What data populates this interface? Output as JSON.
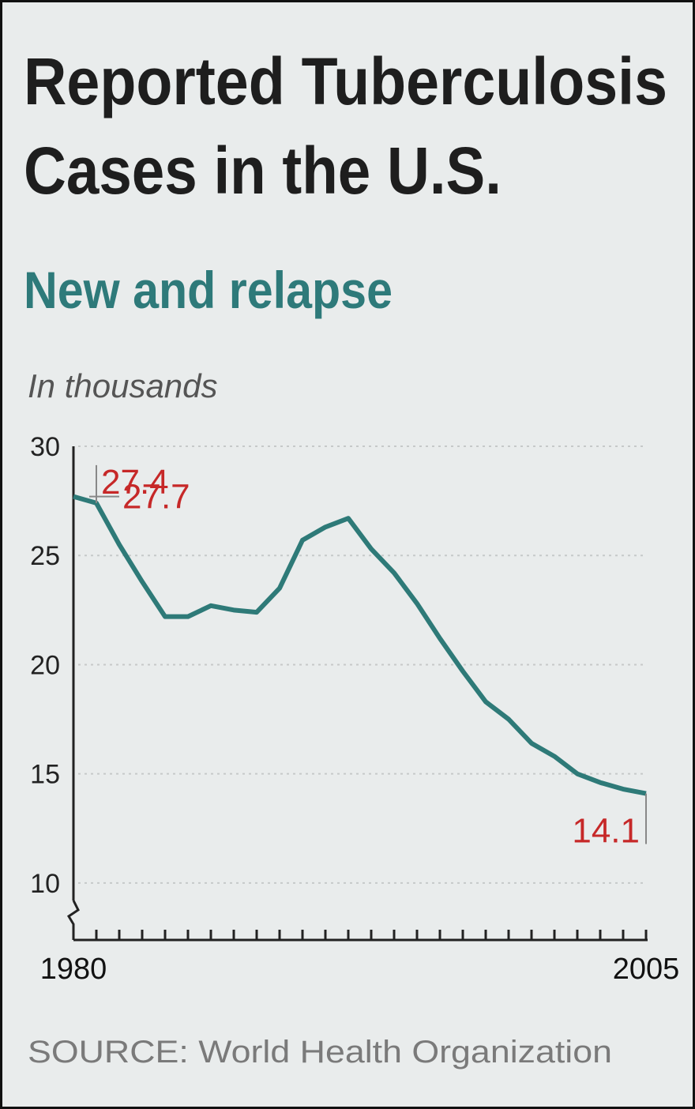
{
  "chart_data": {
    "type": "line",
    "title": "Reported Tuberculosis",
    "title_line2": "Cases in the U.S.",
    "subtitle": "New and relapse",
    "y_label": "In thousands",
    "source": "SOURCE: World Health Organization",
    "x": [
      1980,
      1981,
      1982,
      1983,
      1984,
      1985,
      1986,
      1987,
      1988,
      1989,
      1990,
      1991,
      1992,
      1993,
      1994,
      1995,
      1996,
      1997,
      1998,
      1999,
      2000,
      2001,
      2002,
      2003,
      2004,
      2005
    ],
    "values": [
      27.7,
      27.4,
      25.5,
      23.8,
      22.2,
      22.2,
      22.7,
      22.5,
      22.4,
      23.5,
      25.7,
      26.3,
      26.7,
      25.3,
      24.2,
      22.8,
      21.2,
      19.7,
      18.3,
      17.5,
      16.4,
      15.8,
      15.0,
      14.6,
      14.3,
      14.1
    ],
    "color": "#2e7a78",
    "label_color": "#c62828",
    "xlim": [
      1980,
      2005
    ],
    "xticks": [
      1980,
      2005
    ],
    "ylim": [
      7.5,
      30
    ],
    "yticks": [
      10,
      15,
      20,
      25,
      30
    ],
    "grid": true
  }
}
